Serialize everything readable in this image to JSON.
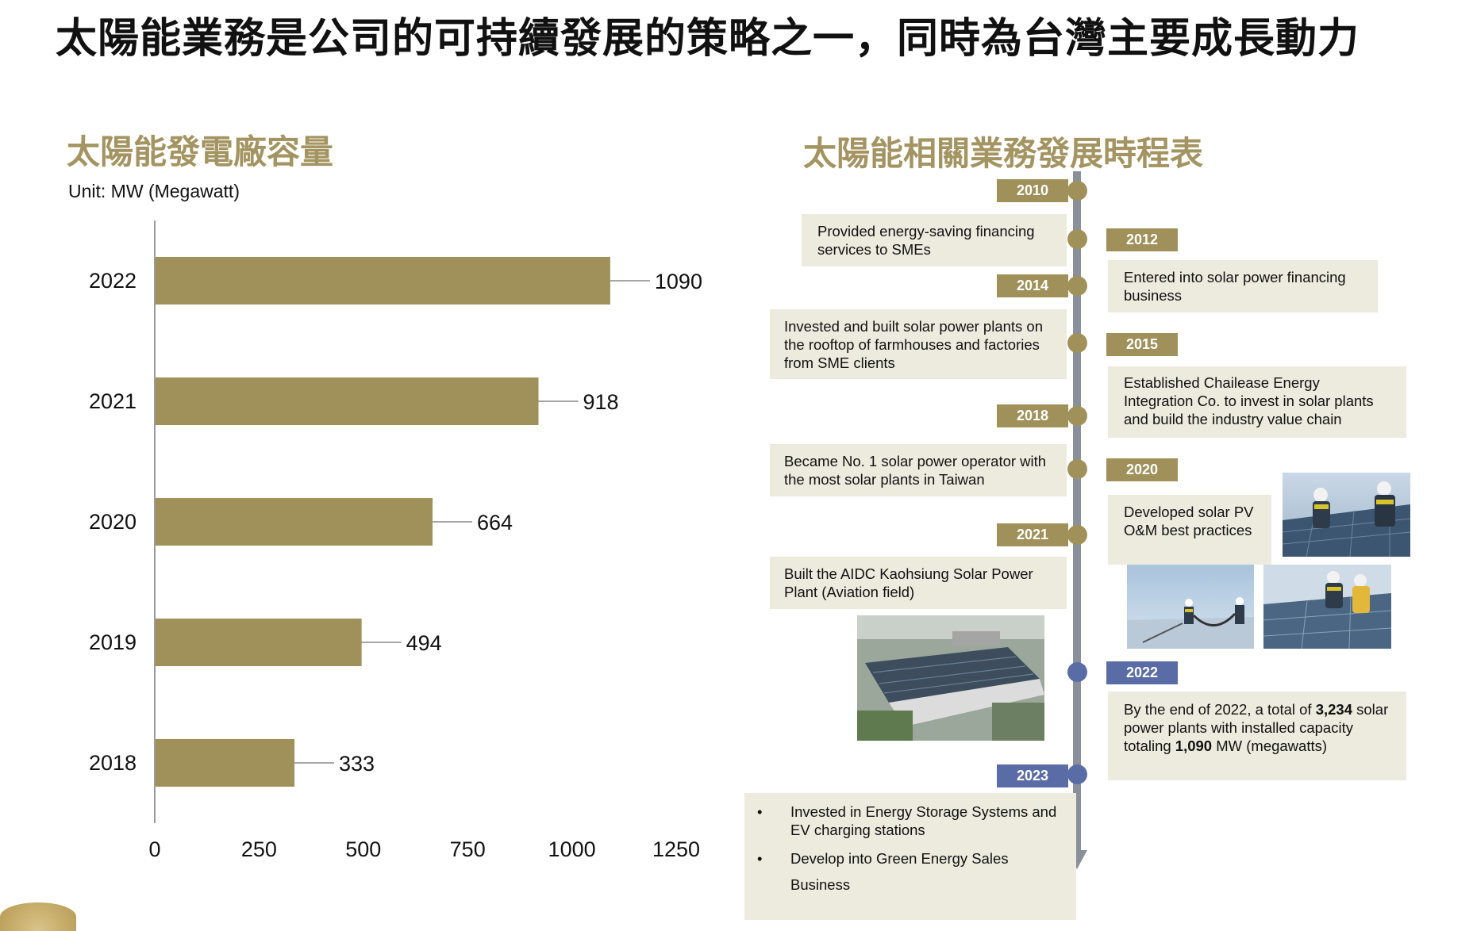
{
  "page": {
    "title": "太陽能業務是公司的可持續發展的策略之一，同時為台灣主要成長動力"
  },
  "left": {
    "section_title": "太陽能發電廠容量",
    "unit_label": "Unit: MW (Megawatt)"
  },
  "chart_data": {
    "type": "bar",
    "orientation": "horizontal",
    "title": "太陽能發電廠容量",
    "unit": "Unit: MW (Megawatt)",
    "categories": [
      "2022",
      "2021",
      "2020",
      "2019",
      "2018"
    ],
    "values": [
      1090,
      918,
      664,
      494,
      333
    ],
    "value_labels": [
      "1090",
      "918",
      "664",
      "494",
      "333"
    ],
    "xlim": [
      0,
      1250
    ],
    "xticks": [
      0,
      250,
      500,
      750,
      1000,
      1250
    ],
    "xtick_labels": [
      "0",
      "250",
      "500",
      "750",
      "1000",
      "1250"
    ],
    "bar_color": "#a0915a",
    "grid": false,
    "legend": "none"
  },
  "right": {
    "section_title": "太陽能相關業務發展時程表",
    "timeline": {
      "y2010": {
        "label": "2010",
        "color": "#a0915a"
      },
      "y2012": {
        "label": "2012",
        "color": "#a0915a"
      },
      "y2014": {
        "label": "2014",
        "color": "#a0915a"
      },
      "y2015": {
        "label": "2015",
        "color": "#a0915a"
      },
      "y2018": {
        "label": "2018",
        "color": "#a0915a"
      },
      "y2020": {
        "label": "2020",
        "color": "#a0915a"
      },
      "y2021": {
        "label": "2021",
        "color": "#a0915a"
      },
      "y2022": {
        "label": "2022",
        "color": "#5a6ca6"
      },
      "y2023": {
        "label": "2023",
        "color": "#5a6ca6"
      }
    },
    "events": {
      "e2010": "Provided energy-saving financing services to SMEs",
      "e2012": "Entered into solar power financing business",
      "e2014": "Invested and built solar power plants on the rooftop of farmhouses and factories from SME clients",
      "e2015": "Established Chailease Energy Integration Co. to invest in solar plants and build the industry value chain",
      "e2018": "Became No. 1 solar power operator with the most solar plants in Taiwan",
      "e2020": "Developed solar PV O&M best practices",
      "e2021": "Built the AIDC Kaohsiung Solar Power Plant (Aviation field)",
      "e2022": {
        "p1": "By the end of 2022, a total of ",
        "b1": "3,234",
        "p2": " solar power plants with installed capacity totaling ",
        "b2": "1,090",
        "p3": " MW (megawatts)"
      },
      "e2023": {
        "bullet1": "Invested in Energy Storage Systems and EV charging stations",
        "bullet2": "Develop into Green Energy Sales Business"
      }
    }
  }
}
